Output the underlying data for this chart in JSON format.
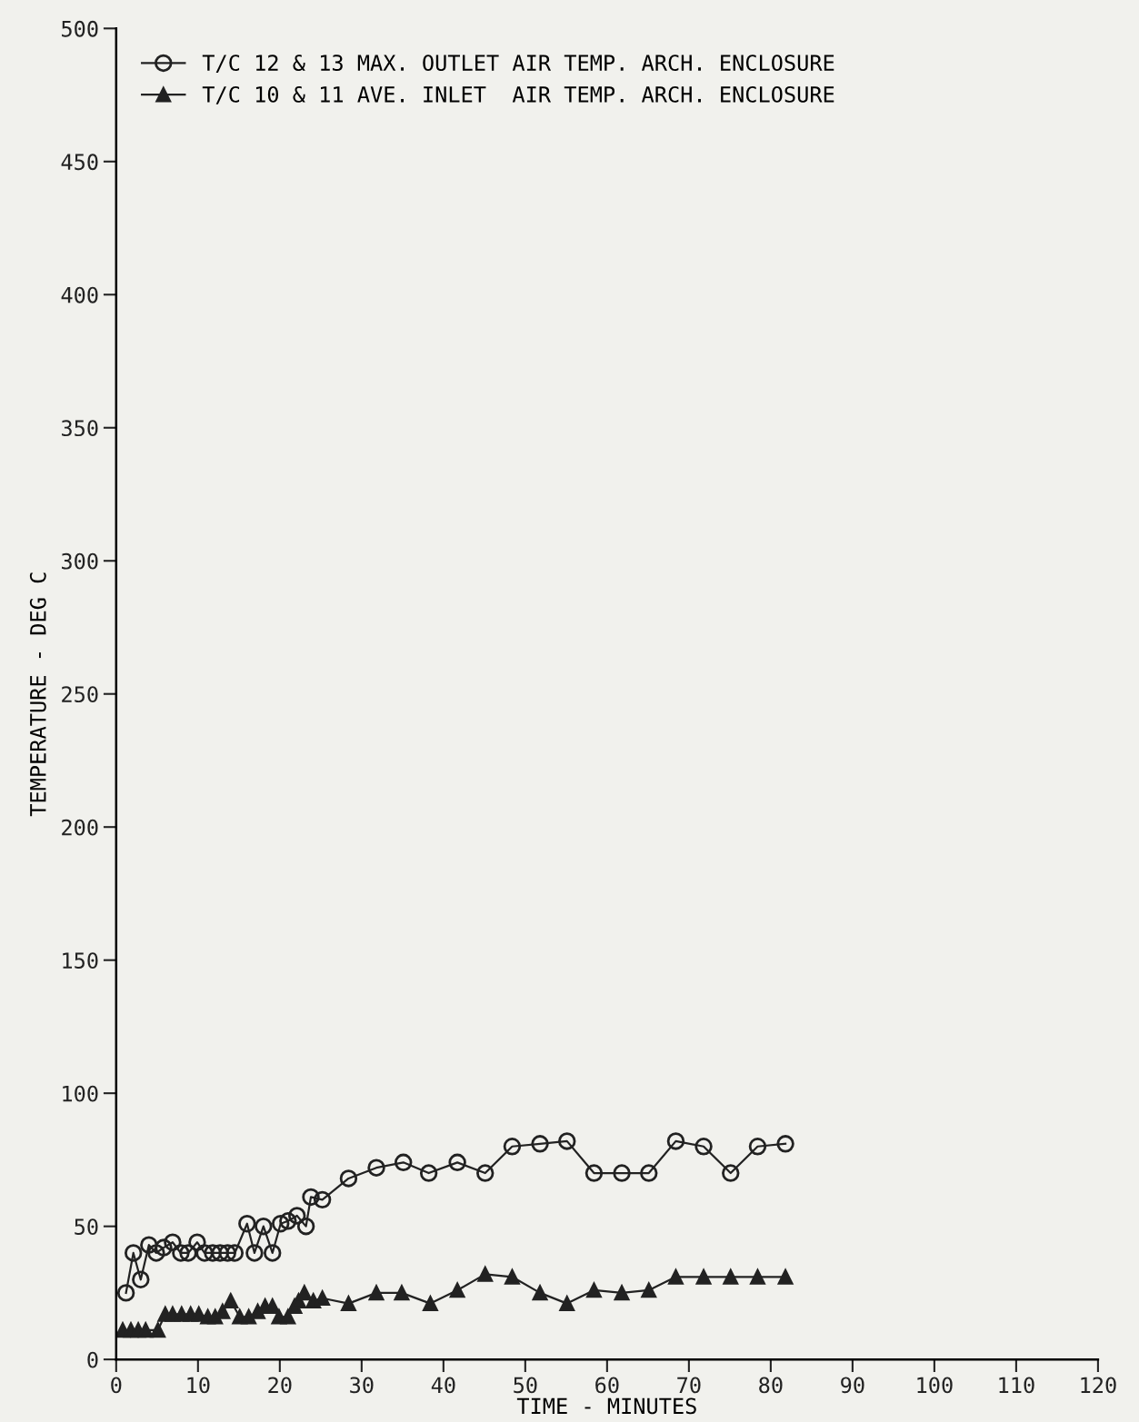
{
  "chart_data": {
    "type": "line",
    "xlabel": "TIME - MINUTES",
    "ylabel": "TEMPERATURE - DEG C",
    "xlim": [
      0,
      120
    ],
    "xticks": [
      0,
      10,
      20,
      30,
      40,
      50,
      60,
      70,
      80,
      90,
      100,
      110,
      120
    ],
    "ylim": [
      0,
      500
    ],
    "yticks": [
      0,
      50,
      100,
      150,
      200,
      250,
      300,
      350,
      400,
      450,
      500
    ],
    "grid": false,
    "legend": "top left",
    "line_style": "solid",
    "series": [
      {
        "name": "T/C 12 & 13 MAX. OUTLET AIR TEMP. ARCH. ENCLOSURE",
        "color": "#222222",
        "marker": "circle",
        "x": [
          1.2,
          2.1,
          3.0,
          4.0,
          4.9,
          5.8,
          6.9,
          7.9,
          8.8,
          9.9,
          10.8,
          11.8,
          12.7,
          13.6,
          14.5,
          16.0,
          16.9,
          18.0,
          19.1,
          20.1,
          21.0,
          22.1,
          23.2,
          23.8,
          25.2,
          28.4,
          31.8,
          35.1,
          38.2,
          41.7,
          45.1,
          48.4,
          51.8,
          55.1,
          58.4,
          61.8,
          65.1,
          68.4,
          71.8,
          75.1,
          78.4,
          81.8
        ],
        "values": [
          25,
          40,
          30,
          43,
          40,
          42,
          44,
          40,
          40,
          44,
          40,
          40,
          40,
          40,
          40,
          51,
          40,
          50,
          40,
          51,
          52,
          54,
          50,
          61,
          60,
          68,
          72,
          74,
          70,
          74,
          70,
          80,
          81,
          82,
          70,
          70,
          70,
          82,
          80,
          70,
          80,
          81
        ]
      },
      {
        "name": "T/C 10 & 11 AVE. INLET  AIR TEMP. ARCH. ENCLOSURE",
        "color": "#222222",
        "marker": "triangle",
        "x": [
          0.8,
          1.8,
          2.7,
          3.6,
          5.1,
          6.0,
          6.9,
          8.0,
          9.1,
          10.1,
          11.2,
          12.1,
          13.0,
          14.0,
          15.1,
          16.2,
          17.3,
          18.2,
          19.1,
          19.9,
          21.0,
          21.8,
          22.3,
          23.0,
          24.1,
          25.2,
          28.4,
          31.8,
          34.9,
          38.4,
          41.7,
          45.1,
          48.4,
          51.8,
          55.1,
          58.4,
          61.8,
          65.1,
          68.4,
          71.8,
          75.1,
          78.4,
          81.8
        ],
        "values": [
          11,
          11,
          11,
          11,
          11,
          17,
          17,
          17,
          17,
          17,
          16,
          16,
          18,
          22,
          16,
          16,
          18,
          20,
          20,
          16,
          16,
          20,
          22,
          25,
          22,
          23,
          21,
          25,
          25,
          21,
          26,
          32,
          31,
          25,
          21,
          26,
          25,
          26,
          31,
          31,
          31,
          31,
          31
        ]
      }
    ]
  }
}
